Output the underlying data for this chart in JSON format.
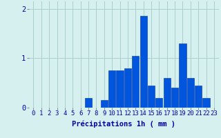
{
  "categories": [
    0,
    1,
    2,
    3,
    4,
    5,
    6,
    7,
    8,
    9,
    10,
    11,
    12,
    13,
    14,
    15,
    16,
    17,
    18,
    19,
    20,
    21,
    22,
    23
  ],
  "values": [
    0,
    0,
    0,
    0,
    0,
    0,
    0,
    0.2,
    0,
    0.15,
    0.75,
    0.75,
    0.8,
    1.05,
    1.85,
    0.45,
    0.2,
    0.6,
    0.4,
    1.3,
    0.6,
    0.45,
    0.2,
    0.0
  ],
  "bar_color": "#0055dd",
  "bar_edge_color": "#0033aa",
  "background_color": "#d6f0f0",
  "grid_color": "#aacece",
  "xlabel": "Précipitations 1h ( mm )",
  "yticks": [
    0,
    1,
    2
  ],
  "ylim": [
    0,
    2.15
  ],
  "xlim": [
    -0.6,
    23.6
  ],
  "xlabel_fontsize": 7.5,
  "tick_fontsize": 6.5,
  "label_color": "#0000aa",
  "bar_width": 0.9
}
